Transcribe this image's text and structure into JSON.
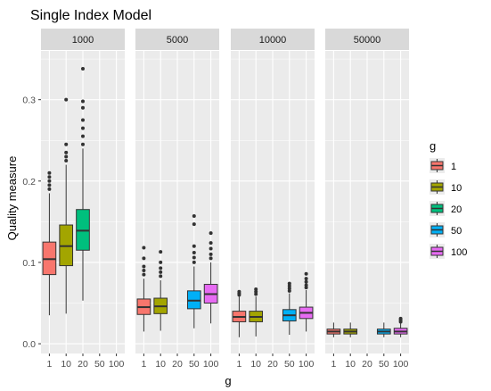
{
  "chart_data": {
    "type": "boxplot",
    "title": "Single Index Model",
    "xlabel": "g",
    "ylabel": "Quality measure",
    "x_categories": [
      "1",
      "10",
      "20",
      "50",
      "100"
    ],
    "ylim": [
      -0.012,
      0.36
    ],
    "y_ticks": [
      0.0,
      0.1,
      0.2,
      0.3
    ],
    "y_tick_labels": [
      "0.0",
      "0.1",
      "0.2",
      "0.3"
    ],
    "grid": true,
    "facets": [
      {
        "label": "1000",
        "boxes": [
          {
            "g": "1",
            "lower": 0.035,
            "q1": 0.085,
            "median": 0.104,
            "q3": 0.125,
            "upper": 0.185,
            "outliers": [
              0.19,
              0.195,
              0.2,
              0.205,
              0.21
            ]
          },
          {
            "g": "10",
            "lower": 0.037,
            "q1": 0.096,
            "median": 0.12,
            "q3": 0.146,
            "upper": 0.22,
            "outliers": [
              0.225,
              0.23,
              0.235,
              0.245,
              0.3
            ]
          },
          {
            "g": "20",
            "lower": 0.053,
            "q1": 0.115,
            "median": 0.139,
            "q3": 0.165,
            "upper": 0.24,
            "outliers": [
              0.245,
              0.255,
              0.265,
              0.275,
              0.29,
              0.298,
              0.338
            ]
          }
        ]
      },
      {
        "label": "5000",
        "boxes": [
          {
            "g": "1",
            "lower": 0.015,
            "q1": 0.036,
            "median": 0.045,
            "q3": 0.055,
            "upper": 0.08,
            "outliers": [
              0.085,
              0.09,
              0.095,
              0.105,
              0.118
            ]
          },
          {
            "g": "10",
            "lower": 0.016,
            "q1": 0.037,
            "median": 0.046,
            "q3": 0.056,
            "upper": 0.078,
            "outliers": [
              0.083,
              0.088,
              0.093,
              0.1,
              0.113
            ]
          },
          {
            "g": "50",
            "lower": 0.019,
            "q1": 0.043,
            "median": 0.053,
            "q3": 0.065,
            "upper": 0.095,
            "outliers": [
              0.1,
              0.106,
              0.112,
              0.12,
              0.147,
              0.157
            ]
          },
          {
            "g": "100",
            "lower": 0.025,
            "q1": 0.05,
            "median": 0.061,
            "q3": 0.073,
            "upper": 0.1,
            "outliers": [
              0.105,
              0.11,
              0.117,
              0.124,
              0.136
            ]
          }
        ]
      },
      {
        "label": "10000",
        "boxes": [
          {
            "g": "1",
            "lower": 0.008,
            "q1": 0.027,
            "median": 0.033,
            "q3": 0.04,
            "upper": 0.058,
            "outliers": [
              0.06,
              0.062,
              0.064
            ]
          },
          {
            "g": "10",
            "lower": 0.009,
            "q1": 0.027,
            "median": 0.033,
            "q3": 0.04,
            "upper": 0.058,
            "outliers": [
              0.061,
              0.064,
              0.067
            ]
          },
          {
            "g": "50",
            "lower": 0.011,
            "q1": 0.028,
            "median": 0.035,
            "q3": 0.042,
            "upper": 0.062,
            "outliers": [
              0.065,
              0.068,
              0.071,
              0.074
            ]
          },
          {
            "g": "100",
            "lower": 0.015,
            "q1": 0.031,
            "median": 0.038,
            "q3": 0.045,
            "upper": 0.066,
            "outliers": [
              0.069,
              0.072,
              0.076,
              0.08,
              0.086
            ]
          }
        ]
      },
      {
        "label": "50000",
        "boxes": [
          {
            "g": "1",
            "lower": 0.008,
            "q1": 0.012,
            "median": 0.015,
            "q3": 0.018,
            "upper": 0.026,
            "outliers": []
          },
          {
            "g": "10",
            "lower": 0.008,
            "q1": 0.012,
            "median": 0.015,
            "q3": 0.018,
            "upper": 0.026,
            "outliers": []
          },
          {
            "g": "50",
            "lower": 0.008,
            "q1": 0.012,
            "median": 0.015,
            "q3": 0.018,
            "upper": 0.026,
            "outliers": []
          },
          {
            "g": "100",
            "lower": 0.008,
            "q1": 0.012,
            "median": 0.015,
            "q3": 0.019,
            "upper": 0.025,
            "outliers": [
              0.027,
              0.029,
              0.031
            ]
          }
        ]
      }
    ],
    "legend": {
      "title": "g",
      "placement": "right",
      "entries": [
        {
          "label": "1",
          "color": "#F8766D"
        },
        {
          "label": "10",
          "color": "#A3A500"
        },
        {
          "label": "20",
          "color": "#00BF7D"
        },
        {
          "label": "50",
          "color": "#00B0F6"
        },
        {
          "label": "100",
          "color": "#E76BF3"
        }
      ]
    },
    "colors": {
      "panel_background": "#EBEBEB",
      "grid": "#FFFFFF",
      "strip_background": "#D9D9D9",
      "outline": "#333333"
    }
  }
}
